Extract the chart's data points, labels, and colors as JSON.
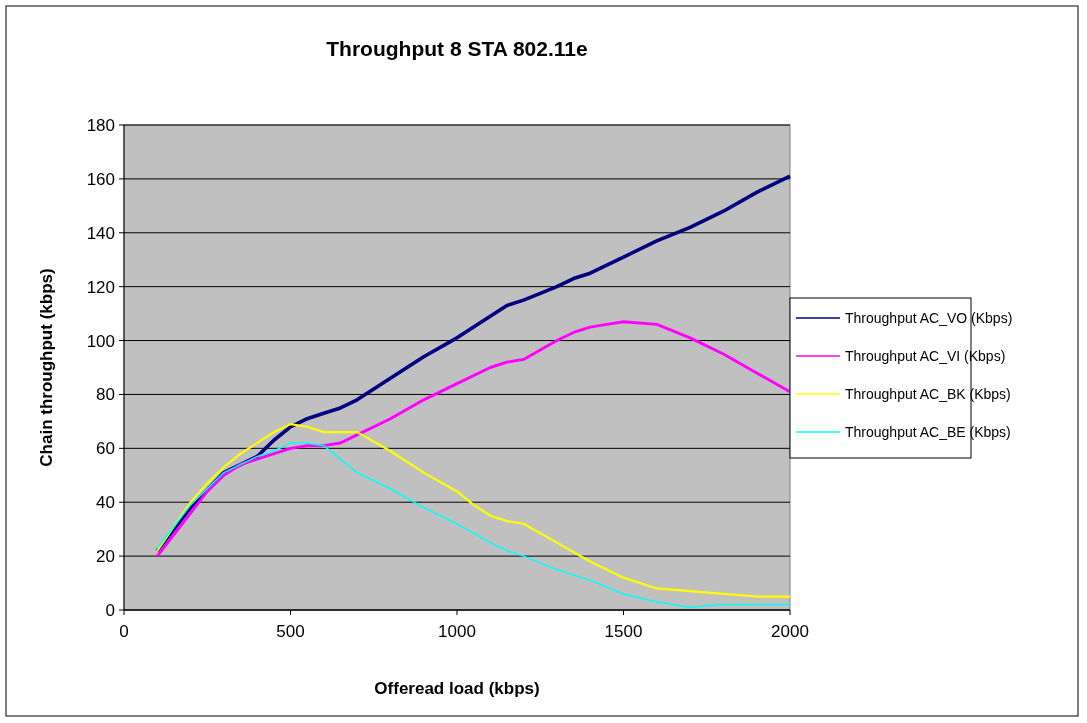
{
  "chart_data": {
    "type": "line",
    "title": "Throughput 8 STA 802.11e",
    "xlabel": "Offeread load (kbps)",
    "ylabel": "Chain throughput (kbps)",
    "xlim": [
      0,
      2000
    ],
    "xticks": [
      0,
      500,
      1000,
      1500,
      2000
    ],
    "ylim": [
      0,
      180
    ],
    "yticks": [
      0,
      20,
      40,
      60,
      80,
      100,
      120,
      140,
      160,
      180
    ],
    "grid": "y",
    "legend": "right",
    "series": [
      {
        "name": "Throughput AC_VO (Kbps)",
        "color": "#000080",
        "x": [
          100,
          200,
          300,
          400,
          450,
          500,
          550,
          600,
          650,
          700,
          800,
          900,
          1000,
          1100,
          1150,
          1200,
          1300,
          1350,
          1400,
          1500,
          1600,
          1700,
          1800,
          1900,
          2000
        ],
        "values": [
          22,
          38,
          51,
          57,
          63,
          68,
          71,
          73,
          75,
          78,
          86,
          94,
          101,
          109,
          113,
          115,
          120,
          123,
          125,
          131,
          137,
          142,
          148,
          155,
          161
        ]
      },
      {
        "name": "Throughput AC_VI (Kbps)",
        "color": "#ff00ff",
        "x": [
          100,
          200,
          250,
          300,
          350,
          400,
          500,
          550,
          600,
          650,
          700,
          800,
          900,
          1000,
          1100,
          1150,
          1200,
          1300,
          1350,
          1400,
          1450,
          1500,
          1600,
          1700,
          1800,
          1900,
          2000
        ],
        "values": [
          20,
          36,
          44,
          50,
          54,
          56,
          60,
          61,
          61,
          62,
          65,
          71,
          78,
          84,
          90,
          92,
          93,
          100,
          103,
          105,
          106,
          107,
          106,
          101,
          95,
          88,
          81
        ]
      },
      {
        "name": "Throughput AC_BK (Kbps)",
        "color": "#ffff00",
        "x": [
          100,
          200,
          250,
          300,
          350,
          400,
          450,
          500,
          550,
          600,
          700,
          800,
          900,
          1000,
          1050,
          1100,
          1150,
          1200,
          1300,
          1400,
          1500,
          1600,
          1700,
          1800,
          1900,
          2000
        ],
        "values": [
          22,
          40,
          47,
          53,
          58,
          62,
          66,
          69,
          68,
          66,
          66,
          59,
          51,
          44,
          39,
          35,
          33,
          32,
          25,
          18,
          12,
          8,
          7,
          6,
          5,
          5
        ]
      },
      {
        "name": "Throughput AC_BE (Kbps)",
        "color": "#00ffff",
        "x": [
          100,
          200,
          300,
          400,
          450,
          500,
          550,
          600,
          650,
          700,
          800,
          900,
          1000,
          1100,
          1150,
          1200,
          1300,
          1400,
          1500,
          1600,
          1700,
          1800,
          1900,
          2000
        ],
        "values": [
          23,
          39,
          51,
          57,
          59,
          62,
          62,
          61,
          56,
          51,
          45,
          38,
          32,
          25,
          22,
          20,
          15,
          11,
          6,
          3,
          1,
          2,
          2,
          2
        ]
      }
    ]
  }
}
